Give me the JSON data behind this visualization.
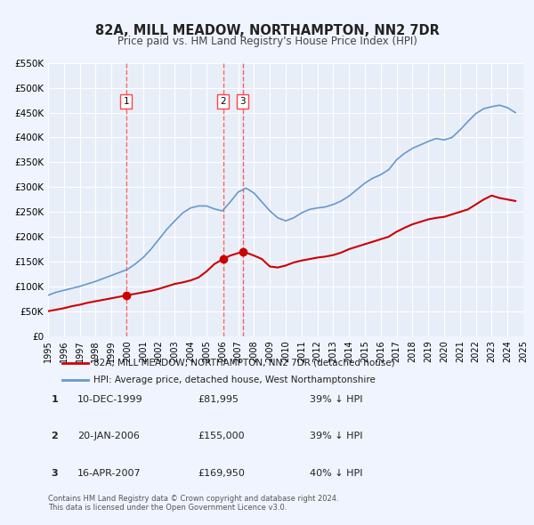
{
  "title": "82A, MILL MEADOW, NORTHAMPTON, NN2 7DR",
  "subtitle": "Price paid vs. HM Land Registry's House Price Index (HPI)",
  "bg_color": "#f0f4ff",
  "plot_bg_color": "#e8eef8",
  "grid_color": "#ffffff",
  "year_start": 1995,
  "year_end": 2025,
  "ylim": [
    0,
    550000
  ],
  "yticks": [
    0,
    50000,
    100000,
    150000,
    200000,
    250000,
    300000,
    350000,
    400000,
    450000,
    500000,
    550000
  ],
  "ytick_labels": [
    "£0",
    "£50K",
    "£100K",
    "£150K",
    "£200K",
    "£250K",
    "£300K",
    "£350K",
    "£400K",
    "£450K",
    "£500K",
    "£550K"
  ],
  "sale_dates_decimal": [
    1999.94,
    2006.05,
    2007.29
  ],
  "sale_prices": [
    81995,
    155000,
    169950
  ],
  "sale_labels": [
    "1",
    "2",
    "3"
  ],
  "vline_color": "#ff4444",
  "vline_style": "--",
  "red_line_color": "#cc0000",
  "blue_line_color": "#6699cc",
  "legend_label_red": "82A, MILL MEADOW, NORTHAMPTON, NN2 7DR (detached house)",
  "legend_label_blue": "HPI: Average price, detached house, West Northamptonshire",
  "table_entries": [
    {
      "num": "1",
      "date": "10-DEC-1999",
      "price": "£81,995",
      "pct": "39% ↓ HPI"
    },
    {
      "num": "2",
      "date": "20-JAN-2006",
      "price": "£155,000",
      "pct": "39% ↓ HPI"
    },
    {
      "num": "3",
      "date": "16-APR-2007",
      "price": "£169,950",
      "pct": "40% ↓ HPI"
    }
  ],
  "footer": "Contains HM Land Registry data © Crown copyright and database right 2024.\nThis data is licensed under the Open Government Licence v3.0.",
  "red_series_x": [
    1995.0,
    1995.5,
    1996.0,
    1996.5,
    1997.0,
    1997.5,
    1998.0,
    1998.5,
    1999.0,
    1999.5,
    1999.94,
    2000.5,
    2001.0,
    2001.5,
    2002.0,
    2002.5,
    2003.0,
    2003.5,
    2004.0,
    2004.5,
    2005.0,
    2005.5,
    2006.05,
    2006.5,
    2007.0,
    2007.29,
    2007.5,
    2008.0,
    2008.5,
    2009.0,
    2009.5,
    2010.0,
    2010.5,
    2011.0,
    2011.5,
    2012.0,
    2012.5,
    2013.0,
    2013.5,
    2014.0,
    2014.5,
    2015.0,
    2015.5,
    2016.0,
    2016.5,
    2017.0,
    2017.5,
    2018.0,
    2018.5,
    2019.0,
    2019.5,
    2020.0,
    2020.5,
    2021.0,
    2021.5,
    2022.0,
    2022.5,
    2023.0,
    2023.5,
    2024.0,
    2024.5
  ],
  "red_series_y": [
    50000,
    53000,
    56000,
    60000,
    63000,
    67000,
    70000,
    73000,
    76000,
    79000,
    81995,
    85000,
    88000,
    91000,
    95000,
    100000,
    105000,
    108000,
    112000,
    118000,
    130000,
    145000,
    155000,
    162000,
    167000,
    169950,
    168000,
    162000,
    155000,
    140000,
    138000,
    142000,
    148000,
    152000,
    155000,
    158000,
    160000,
    163000,
    168000,
    175000,
    180000,
    185000,
    190000,
    195000,
    200000,
    210000,
    218000,
    225000,
    230000,
    235000,
    238000,
    240000,
    245000,
    250000,
    255000,
    265000,
    275000,
    283000,
    278000,
    275000,
    272000
  ],
  "blue_series_x": [
    1995.0,
    1995.5,
    1996.0,
    1996.5,
    1997.0,
    1997.5,
    1998.0,
    1998.5,
    1999.0,
    1999.5,
    2000.0,
    2000.5,
    2001.0,
    2001.5,
    2002.0,
    2002.5,
    2003.0,
    2003.5,
    2004.0,
    2004.5,
    2005.0,
    2005.5,
    2006.0,
    2006.5,
    2007.0,
    2007.5,
    2008.0,
    2008.5,
    2009.0,
    2009.5,
    2010.0,
    2010.5,
    2011.0,
    2011.5,
    2012.0,
    2012.5,
    2013.0,
    2013.5,
    2014.0,
    2014.5,
    2015.0,
    2015.5,
    2016.0,
    2016.5,
    2017.0,
    2017.5,
    2018.0,
    2018.5,
    2019.0,
    2019.5,
    2020.0,
    2020.5,
    2021.0,
    2021.5,
    2022.0,
    2022.5,
    2023.0,
    2023.5,
    2024.0,
    2024.5
  ],
  "blue_series_y": [
    82000,
    88000,
    92000,
    96000,
    100000,
    105000,
    110000,
    116000,
    122000,
    128000,
    134000,
    145000,
    158000,
    175000,
    195000,
    215000,
    232000,
    248000,
    258000,
    262000,
    262000,
    256000,
    252000,
    270000,
    290000,
    298000,
    288000,
    270000,
    252000,
    238000,
    232000,
    238000,
    248000,
    255000,
    258000,
    260000,
    265000,
    272000,
    282000,
    295000,
    308000,
    318000,
    325000,
    335000,
    355000,
    368000,
    378000,
    385000,
    392000,
    398000,
    395000,
    400000,
    415000,
    432000,
    448000,
    458000,
    462000,
    465000,
    460000,
    450000
  ]
}
